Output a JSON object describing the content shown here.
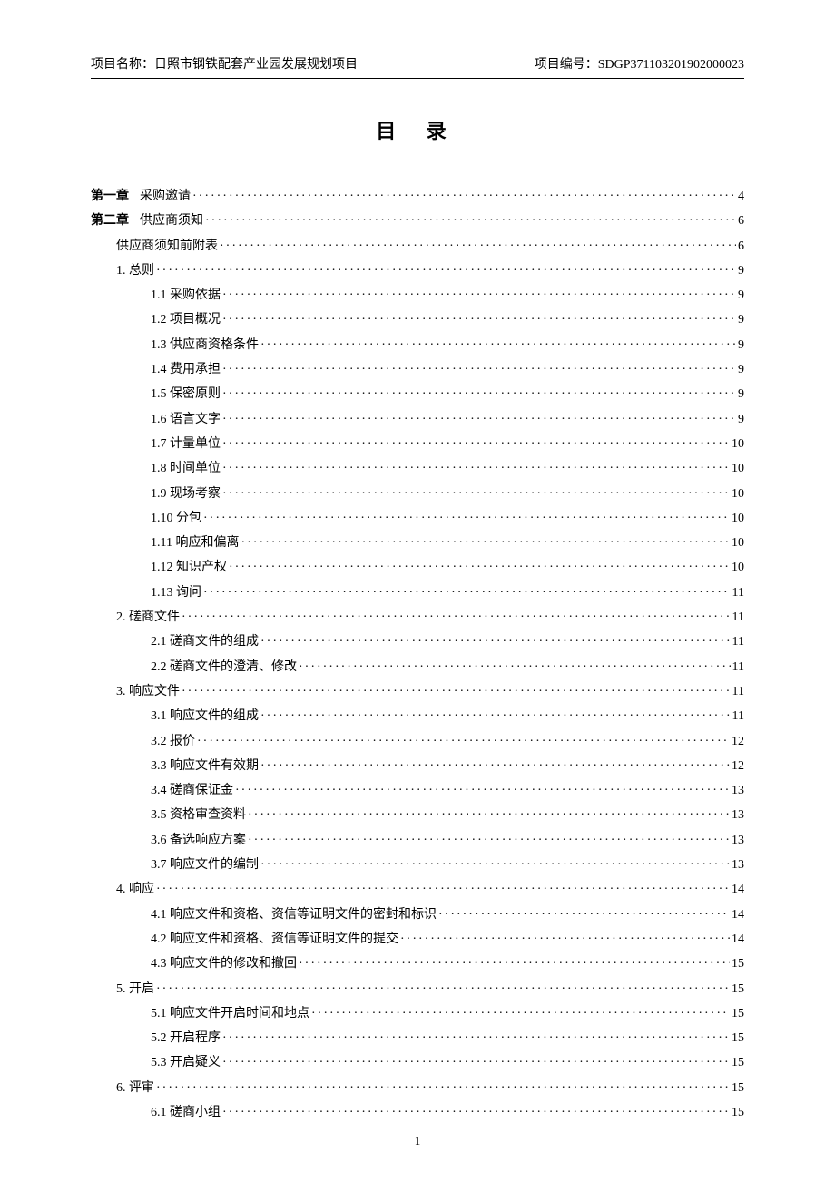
{
  "header": {
    "project_name_label": "项目名称：",
    "project_name": "日照市钢铁配套产业园发展规划项目",
    "project_code_label": "项目编号：",
    "project_code": "SDGP371103201902000023"
  },
  "title": "目 录",
  "page_number": "1",
  "toc": [
    {
      "level": 0,
      "label": "第一章",
      "text": "采购邀请",
      "page": "4",
      "isChapter": true
    },
    {
      "level": 0,
      "label": "第二章",
      "text": "供应商须知",
      "page": "6",
      "isChapter": true
    },
    {
      "level": 1,
      "label": "供应商须知前附表",
      "page": "6"
    },
    {
      "level": 1,
      "label": "1. 总则",
      "page": "9"
    },
    {
      "level": 2,
      "label": "1.1 采购依据",
      "page": "9"
    },
    {
      "level": 2,
      "label": "1.2 项目概况",
      "page": "9"
    },
    {
      "level": 2,
      "label": "1.3 供应商资格条件",
      "page": "9"
    },
    {
      "level": 2,
      "label": "1.4 费用承担",
      "page": "9"
    },
    {
      "level": 2,
      "label": "1.5 保密原则",
      "page": "9"
    },
    {
      "level": 2,
      "label": "1.6 语言文字",
      "page": "9"
    },
    {
      "level": 2,
      "label": "1.7 计量单位",
      "page": "10"
    },
    {
      "level": 2,
      "label": "1.8 时间单位",
      "page": "10"
    },
    {
      "level": 2,
      "label": "1.9 现场考察",
      "page": "10"
    },
    {
      "level": 2,
      "label": "1.10 分包",
      "page": "10"
    },
    {
      "level": 2,
      "label": "1.11 响应和偏离",
      "page": "10"
    },
    {
      "level": 2,
      "label": "1.12 知识产权",
      "page": "10"
    },
    {
      "level": 2,
      "label": "1.13 询问",
      "page": "11"
    },
    {
      "level": 1,
      "label": "2. 磋商文件",
      "page": "11"
    },
    {
      "level": 2,
      "label": "2.1 磋商文件的组成",
      "page": "11"
    },
    {
      "level": 2,
      "label": "2.2 磋商文件的澄清、修改",
      "page": "11"
    },
    {
      "level": 1,
      "label": "3. 响应文件",
      "page": "11"
    },
    {
      "level": 2,
      "label": "3.1 响应文件的组成",
      "page": "11"
    },
    {
      "level": 2,
      "label": "3.2 报价",
      "page": "12"
    },
    {
      "level": 2,
      "label": "3.3 响应文件有效期",
      "page": "12"
    },
    {
      "level": 2,
      "label": "3.4 磋商保证金",
      "page": "13"
    },
    {
      "level": 2,
      "label": "3.5 资格审查资料",
      "page": "13"
    },
    {
      "level": 2,
      "label": "3.6 备选响应方案",
      "page": "13"
    },
    {
      "level": 2,
      "label": "3.7 响应文件的编制",
      "page": "13"
    },
    {
      "level": 1,
      "label": "4. 响应",
      "page": "14"
    },
    {
      "level": 2,
      "label": "4.1 响应文件和资格、资信等证明文件的密封和标识",
      "page": "14"
    },
    {
      "level": 2,
      "label": "4.2 响应文件和资格、资信等证明文件的提交",
      "page": "14"
    },
    {
      "level": 2,
      "label": "4.3 响应文件的修改和撤回",
      "page": "15"
    },
    {
      "level": 1,
      "label": "5. 开启",
      "page": "15"
    },
    {
      "level": 2,
      "label": "5.1 响应文件开启时间和地点",
      "page": "15"
    },
    {
      "level": 2,
      "label": "5.2 开启程序",
      "page": "15"
    },
    {
      "level": 2,
      "label": "5.3 开启疑义",
      "page": "15"
    },
    {
      "level": 1,
      "label": "6. 评审",
      "page": "15"
    },
    {
      "level": 2,
      "label": "6.1 磋商小组",
      "page": "15"
    }
  ]
}
